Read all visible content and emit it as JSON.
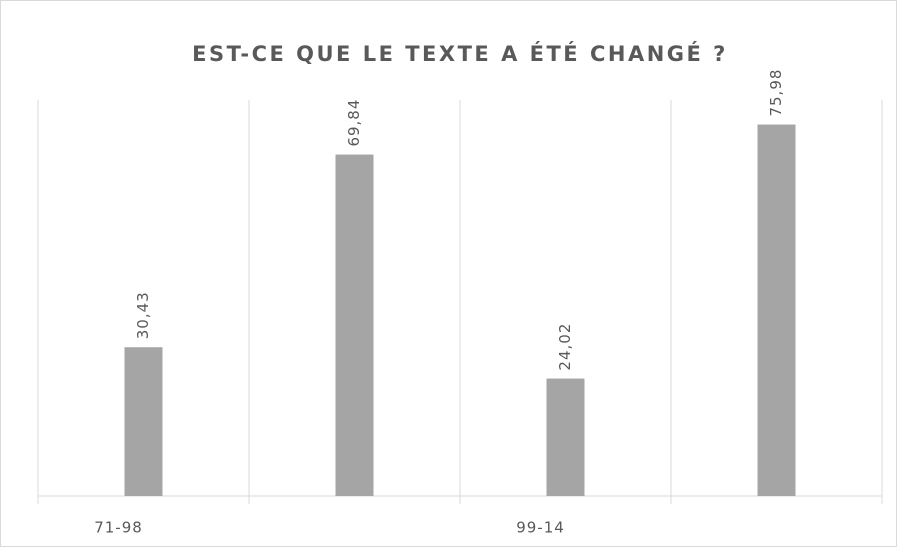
{
  "chart_data": {
    "type": "bar",
    "title": "EST-CE QUE LE TEXTE A ÉTÉ CHANGÉ ?",
    "categories": [
      "71-98",
      null,
      "99-14",
      null
    ],
    "values": [
      30.43,
      69.84,
      24.02,
      75.98
    ],
    "value_labels": [
      "30,43",
      "69,84",
      "24,02",
      "75,98"
    ],
    "color": "#a5a5a5",
    "ylim": [
      0,
      81
    ]
  }
}
